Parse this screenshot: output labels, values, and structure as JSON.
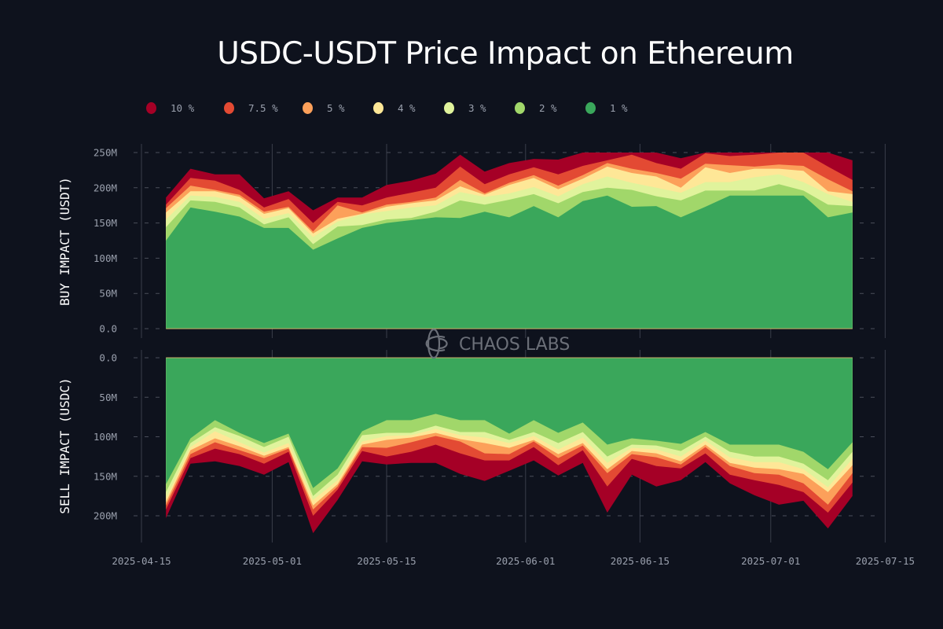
{
  "title": "USDC-USDT Price Impact on Ethereum",
  "watermark": "CHAOS LABS",
  "legend": [
    {
      "label": "10 %",
      "color": "#a50026"
    },
    {
      "label": "7.5 %",
      "color": "#e34a33"
    },
    {
      "label": "5 %",
      "color": "#fca05a"
    },
    {
      "label": "4 %",
      "color": "#fee797"
    },
    {
      "label": "3 %",
      "color": "#e0f39c"
    },
    {
      "label": "2 %",
      "color": "#a1d76a"
    },
    {
      "label": "1 %",
      "color": "#3aa75b"
    }
  ],
  "chart_data": [
    {
      "type": "area",
      "name": "buy",
      "title": "USDC-USDT Price Impact on Ethereum",
      "ylabel": "BUY IMPACT (USDT)",
      "xlabel": "",
      "ylim": [
        0,
        250
      ],
      "yticks": [
        "0.0",
        "50M",
        "100M",
        "150M",
        "200M",
        "250M"
      ],
      "ytick_values": [
        0,
        50,
        100,
        150,
        200,
        250
      ],
      "stacked": "cumulative",
      "grid": true,
      "legend": "top-left",
      "x": [
        "2025-04-18",
        "2025-04-21",
        "2025-04-24",
        "2025-04-27",
        "2025-04-30",
        "2025-05-03",
        "2025-05-06",
        "2025-05-09",
        "2025-05-12",
        "2025-05-15",
        "2025-05-18",
        "2025-05-21",
        "2025-05-24",
        "2025-05-27",
        "2025-05-30",
        "2025-06-02",
        "2025-06-05",
        "2025-06-08",
        "2025-06-11",
        "2025-06-14",
        "2025-06-17",
        "2025-06-20",
        "2025-06-23",
        "2025-06-26",
        "2025-06-29",
        "2025-07-02",
        "2025-07-05",
        "2025-07-08",
        "2025-07-11"
      ],
      "series": [
        {
          "name": "1 %",
          "values": [
            125,
            172,
            166,
            159,
            143,
            143,
            112,
            128,
            143,
            150,
            154,
            158,
            157,
            166,
            158,
            174,
            158,
            181,
            189,
            173,
            174,
            158,
            173,
            189,
            189,
            189,
            189,
            158,
            165
          ]
        },
        {
          "name": "2 %",
          "values": [
            144,
            182,
            180,
            172,
            148,
            158,
            120,
            145,
            147,
            155,
            157,
            166,
            182,
            176,
            183,
            191,
            178,
            194,
            200,
            197,
            188,
            182,
            196,
            196,
            196,
            205,
            196,
            176,
            174
          ]
        },
        {
          "name": "3 %",
          "values": [
            155,
            189,
            187,
            180,
            156,
            164,
            130,
            152,
            162,
            167,
            172,
            175,
            194,
            187,
            192,
            201,
            188,
            205,
            216,
            207,
            200,
            193,
            208,
            208,
            215,
            219,
            208,
            191,
            180
          ]
        },
        {
          "name": "4 %",
          "values": [
            165,
            195,
            195,
            187,
            163,
            171,
            135,
            156,
            163,
            173,
            178,
            182,
            202,
            190,
            204,
            214,
            198,
            213,
            230,
            221,
            216,
            200,
            229,
            221,
            227,
            227,
            224,
            195,
            191
          ]
        },
        {
          "name": "5 %",
          "values": [
            171,
            203,
            197,
            190,
            166,
            173,
            138,
            175,
            165,
            176,
            180,
            186,
            211,
            192,
            207,
            218,
            203,
            218,
            235,
            227,
            221,
            213,
            234,
            232,
            230,
            233,
            231,
            212,
            195
          ]
        },
        {
          "name": "7.5 %",
          "values": [
            176,
            214,
            210,
            197,
            172,
            184,
            150,
            180,
            175,
            186,
            193,
            200,
            230,
            205,
            219,
            229,
            219,
            231,
            239,
            247,
            235,
            227,
            249,
            245,
            247,
            250,
            250,
            230,
            211
          ]
        },
        {
          "name": "10 %",
          "values": [
            186,
            227,
            219,
            219,
            185,
            195,
            168,
            186,
            186,
            204,
            210,
            220,
            247,
            223,
            235,
            241,
            240,
            250,
            250,
            250,
            250,
            242,
            250,
            250,
            250,
            250,
            250,
            250,
            239
          ]
        }
      ]
    },
    {
      "type": "area",
      "name": "sell",
      "ylabel": "SELL IMPACT (USDC)",
      "xlabel": "",
      "ylim": [
        0,
        230
      ],
      "inverted": true,
      "yticks": [
        "0.0",
        "50M",
        "100M",
        "150M",
        "200M"
      ],
      "ytick_values": [
        0,
        50,
        100,
        150,
        200
      ],
      "xticks": [
        "2025-04-15",
        "2025-05-01",
        "2025-05-15",
        "2025-06-01",
        "2025-06-15",
        "2025-07-01",
        "2025-07-15"
      ],
      "stacked": "cumulative",
      "grid": true,
      "x": [
        "2025-04-18",
        "2025-04-21",
        "2025-04-24",
        "2025-04-27",
        "2025-04-30",
        "2025-05-03",
        "2025-05-06",
        "2025-05-09",
        "2025-05-12",
        "2025-05-15",
        "2025-05-18",
        "2025-05-21",
        "2025-05-24",
        "2025-05-27",
        "2025-05-30",
        "2025-06-02",
        "2025-06-05",
        "2025-06-08",
        "2025-06-11",
        "2025-06-14",
        "2025-06-17",
        "2025-06-20",
        "2025-06-23",
        "2025-06-26",
        "2025-06-29",
        "2025-07-02",
        "2025-07-05",
        "2025-07-08",
        "2025-07-11"
      ],
      "series": [
        {
          "name": "1 %",
          "values": [
            160,
            102,
            79,
            95,
            108,
            96,
            165,
            140,
            93,
            79,
            79,
            71,
            79,
            79,
            96,
            79,
            95,
            82,
            110,
            102,
            105,
            109,
            94,
            110,
            110,
            110,
            119,
            141,
            107
          ]
        },
        {
          "name": "2 %",
          "values": [
            170,
            108,
            88,
            99,
            113,
            100,
            175,
            148,
            98,
            95,
            95,
            86,
            94,
            94,
            104,
            94,
            108,
            94,
            125,
            110,
            111,
            118,
            100,
            119,
            125,
            125,
            134,
            155,
            119
          ]
        },
        {
          "name": "3 %",
          "values": [
            178,
            113,
            93,
            107,
            120,
            108,
            180,
            155,
            106,
            99,
            98,
            90,
            98,
            101,
            108,
            99,
            116,
            101,
            133,
            114,
            116,
            125,
            105,
            126,
            132,
            132,
            141,
            164,
            128
          ]
        },
        {
          "name": "4 %",
          "values": [
            183,
            117,
            102,
            112,
            124,
            113,
            187,
            160,
            110,
            104,
            101,
            95,
            103,
            108,
            114,
            104,
            122,
            108,
            141,
            118,
            121,
            131,
            110,
            133,
            139,
            141,
            147,
            170,
            136
          ]
        },
        {
          "name": "5 %",
          "values": [
            187,
            122,
            107,
            117,
            127,
            115,
            192,
            163,
            113,
            114,
            107,
            99,
            106,
            121,
            122,
            106,
            127,
            111,
            146,
            122,
            126,
            135,
            113,
            137,
            146,
            148,
            159,
            186,
            146
          ]
        },
        {
          "name": "7.5 %",
          "values": [
            192,
            127,
            115,
            122,
            134,
            119,
            200,
            167,
            118,
            125,
            119,
            110,
            121,
            130,
            130,
            113,
            136,
            117,
            163,
            128,
            137,
            140,
            121,
            148,
            155,
            161,
            170,
            196,
            158
          ]
        },
        {
          "name": "10 %",
          "values": [
            203,
            134,
            131,
            137,
            148,
            132,
            222,
            180,
            131,
            135,
            133,
            133,
            147,
            156,
            143,
            130,
            149,
            133,
            196,
            148,
            163,
            155,
            132,
            159,
            174,
            186,
            181,
            216,
            175
          ]
        }
      ]
    }
  ]
}
